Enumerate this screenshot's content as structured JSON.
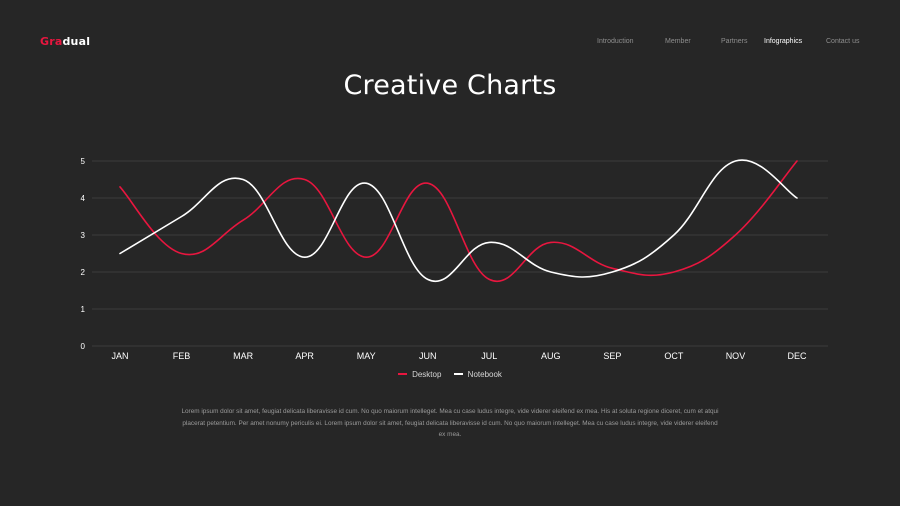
{
  "logo": {
    "accent_part": "Gra",
    "rest_part": "dual"
  },
  "nav": {
    "items": [
      {
        "label": "Introduction",
        "active": false
      },
      {
        "label": "Member",
        "active": false
      },
      {
        "label": "Partners",
        "active": false
      },
      {
        "label": "Infographics",
        "active": true
      },
      {
        "label": "Contact us",
        "active": false
      }
    ]
  },
  "page_title": "Creative Charts",
  "chart_data": {
    "type": "line",
    "title": "Creative Charts",
    "xlabel": "",
    "ylabel": "",
    "categories": [
      "JAN",
      "FEB",
      "MAR",
      "APR",
      "MAY",
      "JUN",
      "JUL",
      "AUG",
      "SEP",
      "OCT",
      "NOV",
      "DEC"
    ],
    "ylim": [
      0,
      5
    ],
    "yticks": [
      "0",
      "1",
      "2",
      "3",
      "4",
      "5"
    ],
    "grid": true,
    "smooth": true,
    "legend_position": "bottom-center",
    "series": [
      {
        "name": "Desktop",
        "color": "#e8163f",
        "values": [
          4.3,
          2.5,
          3.4,
          4.5,
          2.4,
          4.4,
          1.8,
          2.8,
          2.1,
          2.0,
          3.0,
          5.0
        ]
      },
      {
        "name": "Notebook",
        "color": "#ffffff",
        "values": [
          2.5,
          3.5,
          4.5,
          2.4,
          4.4,
          1.8,
          2.8,
          2.0,
          2.0,
          3.0,
          5.0,
          4.0
        ]
      }
    ]
  },
  "legend": {
    "desktop_label": "Desktop",
    "notebook_label": "Notebook"
  },
  "paragraph": "Lorem ipsum dolor sit amet, feugiat delicata liberavisse id cum. No quo maiorum intelleget. Mea cu case ludus integre, vide viderer eleifend ex mea. His at soluta regione diceret, cum et atqui placerat petentium. Per amet nonumy periculis ei. Lorem ipsum dolor sit amet, feugiat delicata liberavisse id cum. No quo maiorum intelleget. Mea cu case ludus integre, vide viderer eleifend ex mea.",
  "colors": {
    "background": "#262626",
    "accent": "#e8163f",
    "gridline": "#444444",
    "axis_text": "#ffffff",
    "nav_text": "#8e8e8e"
  }
}
